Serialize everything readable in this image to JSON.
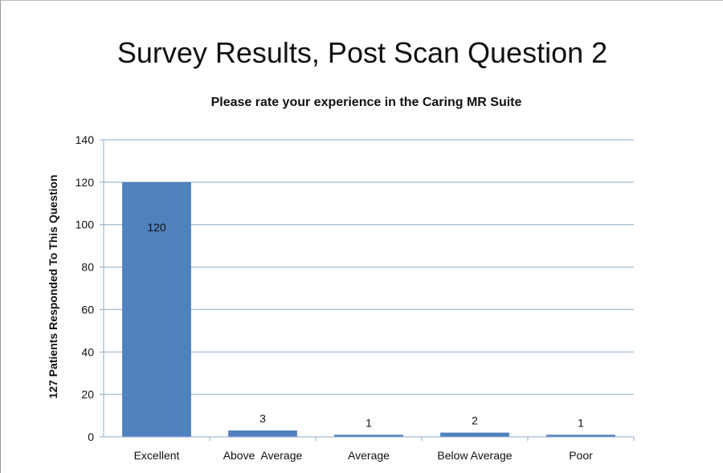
{
  "slide": {
    "title": "Survey Results, Post Scan Question 2"
  },
  "chart_data": {
    "type": "bar",
    "title": "Please rate your experience in the Caring MR Suite",
    "categories": [
      "Excellent",
      "Above  Average",
      "Average",
      "Below Average",
      "Poor"
    ],
    "values": [
      120,
      3,
      1,
      2,
      1
    ],
    "data_labels": [
      "120",
      "3",
      "1",
      "2",
      "1"
    ],
    "xlabel": "",
    "ylabel": "127  Patients Responded To This Question",
    "ylim": [
      0,
      140
    ],
    "yticks": [
      0,
      20,
      40,
      60,
      80,
      100,
      120,
      140
    ],
    "grid": true,
    "legend": "none",
    "bar_color": "#4f81bd",
    "grid_color": "#8ea9cc"
  }
}
